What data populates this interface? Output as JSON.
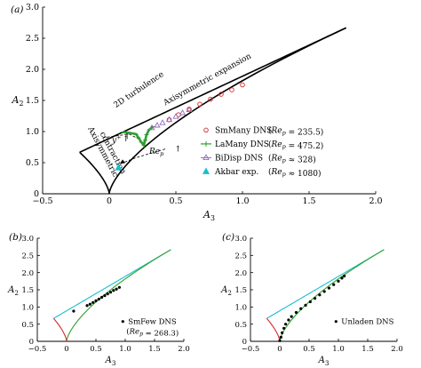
{
  "chart_data": [
    {
      "panel_label": "(a)",
      "type": "scatter",
      "xlabel": "A3",
      "ylabel": "A2",
      "xlim": [
        -0.5,
        2.0
      ],
      "ylim": [
        0,
        3.0
      ],
      "xticks": [
        -0.5,
        0,
        0.5,
        1.0,
        1.5,
        2.0
      ],
      "xtick_labels": [
        "−0.5",
        "0",
        "0.5",
        "1.0",
        "1.5",
        "2.0"
      ],
      "yticks": [
        0,
        0.5,
        1.0,
        1.5,
        2.0,
        2.5,
        3.0
      ],
      "ytick_labels": [
        "0",
        "0.5",
        "1.0",
        "1.5",
        "2.0",
        "2.5",
        "3.0"
      ],
      "grid": false,
      "legend_position": "right",
      "boundaries": {
        "color": "#000000",
        "upper": [
          [
            -0.222,
            0.667
          ],
          [
            0.2,
            1.15
          ],
          [
            0.6,
            1.53
          ],
          [
            1.0,
            1.9
          ],
          [
            1.4,
            2.3
          ],
          [
            1.778,
            2.667
          ]
        ],
        "lower": [
          [
            0.0,
            0.0
          ],
          [
            0.1,
            0.2
          ],
          [
            0.25,
            0.42
          ],
          [
            0.5,
            0.73
          ],
          [
            0.85,
            1.12
          ],
          [
            1.2,
            1.53
          ],
          [
            1.5,
            2.0
          ],
          [
            1.778,
            2.667
          ]
        ],
        "left": [
          [
            -0.222,
            0.667
          ],
          [
            -0.15,
            0.45
          ],
          [
            -0.08,
            0.22
          ],
          [
            0.0,
            0.0
          ]
        ]
      },
      "annotations": [
        {
          "text": "2D turbulence",
          "x": 0.05,
          "y": 1.38,
          "rotate": -34
        },
        {
          "text": "Axisymmetric expansion",
          "x": 0.42,
          "y": 1.42,
          "rotate": -29
        },
        {
          "text": "Axisymmetric",
          "x": -0.16,
          "y": 1.05,
          "rotate": 62
        },
        {
          "text": "contraction",
          "x": -0.07,
          "y": 0.97,
          "rotate": 62
        },
        {
          "text": "y+ ↑",
          "x": 0.02,
          "y": 0.82,
          "rotate": 0
        },
        {
          "text": "↑",
          "x": 0.1,
          "y": 0.84,
          "rotate": 0
        },
        {
          "text": "Re_p",
          "x": 0.3,
          "y": 0.64,
          "rotate": 0
        },
        {
          "text": "↑",
          "x": 0.49,
          "y": 0.68,
          "rotate": 0
        }
      ],
      "series": [
        {
          "name": "SmMany DNS (Re_p = 235.5)",
          "legend_label": "SmMany DNS",
          "legend_param": "(Re_p = 235.5)",
          "marker": "open-circle",
          "color": "#d62728",
          "points": [
            [
              0.45,
              1.19
            ],
            [
              0.52,
              1.27
            ],
            [
              0.6,
              1.36
            ],
            [
              0.68,
              1.44
            ],
            [
              0.76,
              1.52
            ],
            [
              0.84,
              1.6
            ],
            [
              0.92,
              1.67
            ],
            [
              1.0,
              1.75
            ]
          ]
        },
        {
          "name": "LaMany DNS (Re_p = 475.2)",
          "legend_label": "LaMany DNS",
          "legend_param": "(Re_p = 475.2)",
          "marker": "plus-line",
          "color": "#2ca02c",
          "points": [
            [
              0.1,
              0.99
            ],
            [
              0.15,
              0.98
            ],
            [
              0.2,
              0.96
            ],
            [
              0.22,
              0.9
            ],
            [
              0.24,
              0.83
            ],
            [
              0.26,
              0.78
            ],
            [
              0.27,
              0.86
            ],
            [
              0.28,
              0.95
            ],
            [
              0.3,
              1.03
            ],
            [
              0.33,
              1.08
            ]
          ]
        },
        {
          "name": "BiDisp DNS (Re_p ≈ 328)",
          "legend_label": "BiDisp DNS",
          "legend_param": "(Re_p ≈ 328)",
          "marker": "open-triangle",
          "color": "#9467bd",
          "points": [
            [
              0.32,
              1.06
            ],
            [
              0.36,
              1.1
            ],
            [
              0.4,
              1.14
            ],
            [
              0.45,
              1.19
            ],
            [
              0.5,
              1.24
            ],
            [
              0.55,
              1.3
            ],
            [
              0.6,
              1.35
            ]
          ]
        },
        {
          "name": "Akbar exp. (Re_p ≈ 1080)",
          "legend_label": "Akbar exp.",
          "legend_param": "(Re_p ≈ 1080)",
          "marker": "filled-triangle",
          "color": "#17becf",
          "points": [
            [
              0.07,
              0.42
            ]
          ]
        }
      ]
    },
    {
      "panel_label": "(b)",
      "type": "scatter",
      "xlabel": "A3",
      "ylabel": "A2",
      "xlim": [
        -0.5,
        2.0
      ],
      "ylim": [
        0,
        3.0
      ],
      "xticks": [
        -0.5,
        0,
        0.5,
        1.0,
        1.5,
        2.0
      ],
      "xtick_labels": [
        "−0.5",
        "0",
        "0.5",
        "1.0",
        "1.5",
        "2.0"
      ],
      "yticks": [
        0,
        0.5,
        1.0,
        1.5,
        2.0,
        2.5,
        3.0
      ],
      "ytick_labels": [
        "0",
        "0.5",
        "1.0",
        "1.5",
        "2.0",
        "2.5",
        "3.0"
      ],
      "grid": false,
      "legend_position": "bottom-right",
      "boundary_colors": {
        "upper": "#17becf",
        "lower": "#2ca02c",
        "left": "#d62728"
      },
      "series": [
        {
          "name": "SmFew DNS (Re_p = 268.3)",
          "legend_label": "SmFew DNS",
          "legend_param": "(Re_p = 268.3)",
          "marker": "dot",
          "color": "#000000",
          "points": [
            [
              0.12,
              0.88
            ],
            [
              0.35,
              1.04
            ],
            [
              0.4,
              1.08
            ],
            [
              0.45,
              1.13
            ],
            [
              0.5,
              1.18
            ],
            [
              0.55,
              1.23
            ],
            [
              0.6,
              1.28
            ],
            [
              0.65,
              1.33
            ],
            [
              0.7,
              1.38
            ],
            [
              0.75,
              1.43
            ],
            [
              0.8,
              1.48
            ],
            [
              0.85,
              1.52
            ],
            [
              0.9,
              1.57
            ]
          ]
        }
      ]
    },
    {
      "panel_label": "(c)",
      "type": "scatter",
      "xlabel": "A3",
      "ylabel": "A2",
      "xlim": [
        -0.5,
        2.0
      ],
      "ylim": [
        0,
        3.0
      ],
      "xticks": [
        -0.5,
        0,
        0.5,
        1.0,
        1.5,
        2.0
      ],
      "xtick_labels": [
        "−0.5",
        "0",
        "0.5",
        "1.0",
        "1.5",
        "2.0"
      ],
      "yticks": [
        0,
        0.5,
        1.0,
        1.5,
        2.0,
        2.5,
        3.0
      ],
      "ytick_labels": [
        "0",
        "0.5",
        "1.0",
        "1.5",
        "2.0",
        "2.5",
        "3.0"
      ],
      "grid": false,
      "legend_position": "bottom-right",
      "boundary_colors": {
        "upper": "#17becf",
        "lower": "#2ca02c",
        "left": "#d62728"
      },
      "series": [
        {
          "name": "Unladen DNS",
          "legend_label": "Unladen DNS",
          "legend_param": "",
          "marker": "dot",
          "color": "#000000",
          "points": [
            [
              0.0,
              0.02
            ],
            [
              0.02,
              0.12
            ],
            [
              0.04,
              0.25
            ],
            [
              0.07,
              0.38
            ],
            [
              0.1,
              0.5
            ],
            [
              0.15,
              0.62
            ],
            [
              0.2,
              0.72
            ],
            [
              0.28,
              0.84
            ],
            [
              0.36,
              0.95
            ],
            [
              0.44,
              1.05
            ],
            [
              0.52,
              1.15
            ],
            [
              0.6,
              1.25
            ],
            [
              0.68,
              1.35
            ],
            [
              0.76,
              1.45
            ],
            [
              0.84,
              1.55
            ],
            [
              0.92,
              1.65
            ],
            [
              1.0,
              1.75
            ],
            [
              1.06,
              1.84
            ],
            [
              1.1,
              1.9
            ]
          ]
        }
      ]
    }
  ]
}
